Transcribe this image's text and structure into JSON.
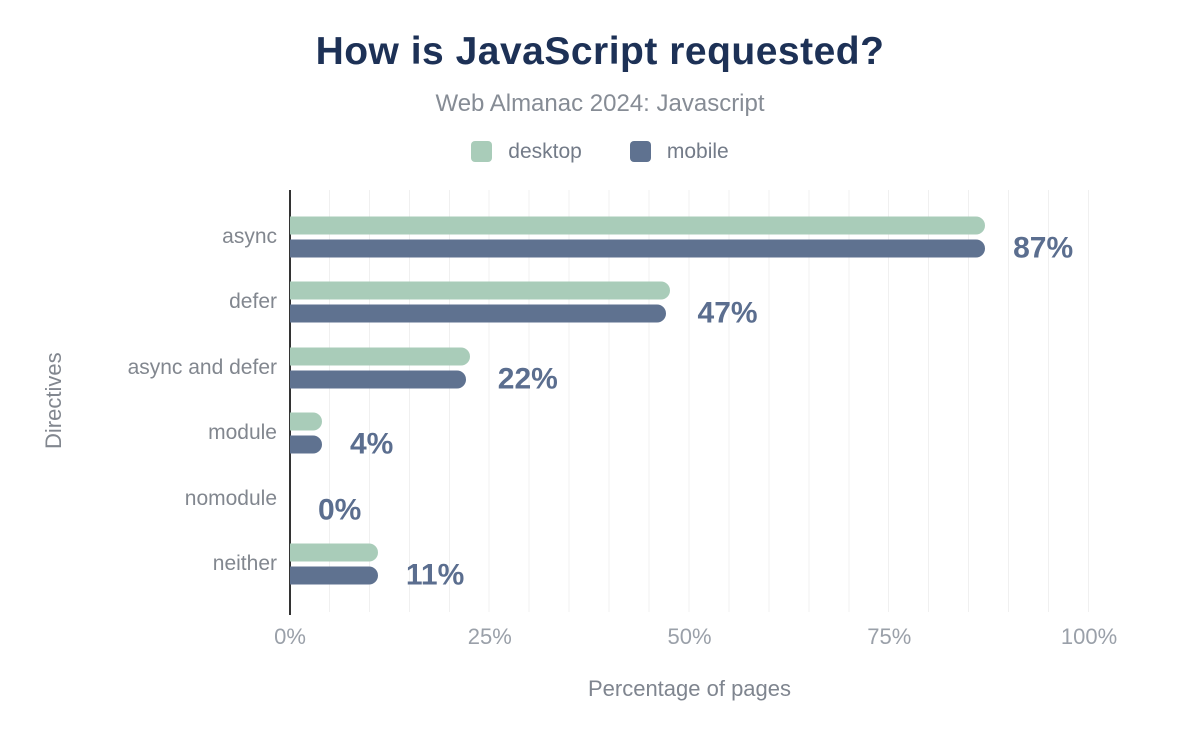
{
  "header": {
    "title": "How is JavaScript requested?",
    "subtitle": "Web Almanac 2024: Javascript"
  },
  "legend": [
    {
      "label": "desktop",
      "color": "#a9ccb9"
    },
    {
      "label": "mobile",
      "color": "#5f7290"
    }
  ],
  "chart_data": {
    "type": "bar",
    "orientation": "horizontal",
    "title": "How is JavaScript requested?",
    "subtitle": "Web Almanac 2024: Javascript",
    "categories": [
      "async",
      "defer",
      "async and defer",
      "module",
      "nomodule",
      "neither"
    ],
    "series": [
      {
        "name": "desktop",
        "color": "#a9ccb9",
        "values": [
          87,
          47.5,
          22.5,
          4,
          0,
          11
        ]
      },
      {
        "name": "mobile",
        "color": "#5f7290",
        "values": [
          87,
          47,
          22,
          4,
          0,
          11
        ]
      }
    ],
    "value_labels": [
      "87%",
      "47%",
      "22%",
      "4%",
      "0%",
      "11%"
    ],
    "xlabel": "Percentage of pages",
    "ylabel": "Directives",
    "xlim": [
      0,
      100
    ],
    "xticks": [
      "0%",
      "25%",
      "50%",
      "75%",
      "100%"
    ],
    "grid": "vertical light lines every 5%",
    "legend_position": "top"
  },
  "colors": {
    "background": "#ffffff",
    "title": "#1d3156",
    "subtitle": "#868c95",
    "category_label": "#82878f",
    "value_label": "#5b6e8f",
    "tick_label": "#9aa0a9",
    "axis_title": "#7f858f",
    "axis_line": "#333333",
    "gridline": "#f0f0f0"
  }
}
